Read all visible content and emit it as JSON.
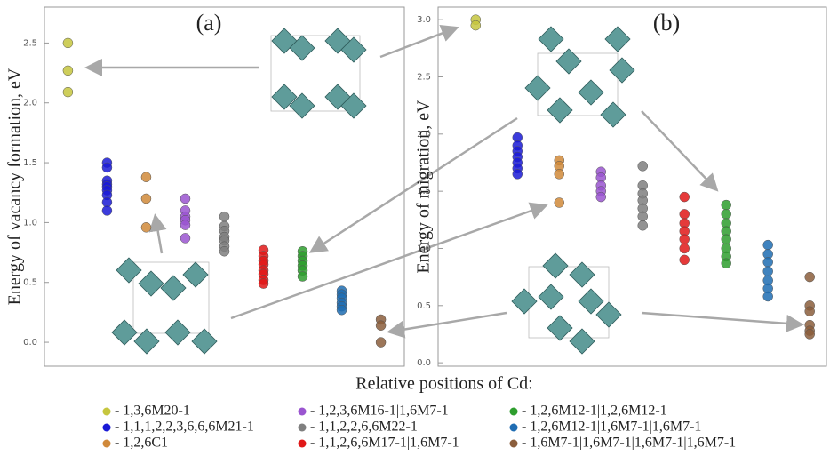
{
  "legend": {
    "title": "Relative positions of Cd:",
    "entries": [
      {
        "name": "- 1,3,6M20-1",
        "color": "#c6c63e"
      },
      {
        "name": "- 1,1,1,2,2,3,6,6,6M21-1",
        "color": "#1a1ad6"
      },
      {
        "name": "- 1,2,6C1",
        "color": "#d0893a"
      },
      {
        "name": "- 1,2,3,6M16-1|1,6M7-1",
        "color": "#9a55d0"
      },
      {
        "name": "- 1,1,2,2,6,6M22-1",
        "color": "#7f7f7f"
      },
      {
        "name": "- 1,1,2,6,6M17-1|1,6M7-1",
        "color": "#e01818"
      },
      {
        "name": "- 1,2,6M12-1|1,2,6M12-1",
        "color": "#2e9e2e"
      },
      {
        "name": "- 1,2,6M12-1|1,6M7-1|1,6M7-1",
        "color": "#1f6db3"
      },
      {
        "name": "- 1,6M7-1|1,6M7-1|1,6M7-1|1,6M7-1",
        "color": "#8b5e3c"
      }
    ]
  },
  "chart_data": [
    {
      "type": "scatter",
      "title": "(a)",
      "y_label": "Energy  of vacancy  formation, eV",
      "xlim": [
        0.4,
        9.6
      ],
      "ylim": [
        -0.2,
        2.8
      ],
      "yticks": [
        {
          "value": 0,
          "label": "0.0"
        },
        0.5,
        {
          "value": 1,
          "label": "1.0"
        },
        1.5,
        {
          "value": 2,
          "label": "2.0"
        },
        2.5
      ],
      "series": [
        {
          "x": [
            1,
            1,
            1
          ],
          "values": [
            2.5,
            2.27,
            2.09
          ]
        },
        {
          "x": [
            2,
            2,
            2,
            2,
            2,
            2,
            2,
            2,
            2
          ],
          "values": [
            1.5,
            1.46,
            1.35,
            1.32,
            1.3,
            1.27,
            1.23,
            1.17,
            1.1
          ]
        },
        {
          "x": [
            3,
            3,
            3
          ],
          "values": [
            1.38,
            1.2,
            0.96
          ]
        },
        {
          "x": [
            4,
            4,
            4,
            4,
            4,
            4
          ],
          "values": [
            1.2,
            1.1,
            1.05,
            1.02,
            0.98,
            0.87
          ]
        },
        {
          "x": [
            5,
            5,
            5,
            5,
            5,
            5,
            5
          ],
          "values": [
            1.05,
            0.97,
            0.93,
            0.88,
            0.85,
            0.8,
            0.76
          ]
        },
        {
          "x": [
            6,
            6,
            6,
            6,
            6,
            6,
            6,
            6
          ],
          "values": [
            0.77,
            0.72,
            0.68,
            0.65,
            0.6,
            0.57,
            0.52,
            0.49
          ]
        },
        {
          "x": [
            7,
            7,
            7,
            7,
            7,
            7
          ],
          "values": [
            0.76,
            0.72,
            0.68,
            0.64,
            0.6,
            0.55
          ]
        },
        {
          "x": [
            8,
            8,
            8,
            8,
            8,
            8
          ],
          "values": [
            0.43,
            0.4,
            0.37,
            0.33,
            0.3,
            0.27
          ]
        },
        {
          "x": [
            9,
            9,
            9
          ],
          "values": [
            0.19,
            0.14,
            0.0
          ]
        }
      ]
    },
    {
      "type": "scatter",
      "title": "(b)",
      "y_label": "Energy  of  migration,  eV",
      "xlim": [
        0.1,
        9.4
      ],
      "ylim": [
        -0.03,
        3.11
      ],
      "yticks": [
        {
          "value": 0,
          "label": "0.0"
        },
        0.5,
        {
          "value": 1,
          "label": "1.0"
        },
        1.5,
        {
          "value": 2,
          "label": "2.0"
        },
        2.5,
        {
          "value": 3,
          "label": "3.0"
        }
      ],
      "series": [
        {
          "x": [
            1,
            1
          ],
          "values": [
            3.0,
            2.95
          ]
        },
        {
          "x": [
            2,
            2,
            2,
            2,
            2,
            2,
            2
          ],
          "values": [
            1.97,
            1.9,
            1.85,
            1.8,
            1.75,
            1.7,
            1.65
          ]
        },
        {
          "x": [
            3,
            3,
            3,
            3
          ],
          "values": [
            1.77,
            1.72,
            1.65,
            1.4
          ]
        },
        {
          "x": [
            4,
            4,
            4,
            4,
            4
          ],
          "values": [
            1.67,
            1.62,
            1.55,
            1.5,
            1.45
          ]
        },
        {
          "x": [
            5,
            5,
            5,
            5,
            5,
            5,
            5
          ],
          "values": [
            1.72,
            1.55,
            1.48,
            1.42,
            1.35,
            1.28,
            1.2
          ]
        },
        {
          "x": [
            6,
            6,
            6,
            6,
            6,
            6,
            6
          ],
          "values": [
            1.45,
            1.3,
            1.22,
            1.15,
            1.08,
            1.0,
            0.9
          ]
        },
        {
          "x": [
            7,
            7,
            7,
            7,
            7,
            7,
            7,
            7
          ],
          "values": [
            1.38,
            1.3,
            1.22,
            1.15,
            1.08,
            1.0,
            0.93,
            0.87
          ]
        },
        {
          "x": [
            8,
            8,
            8,
            8,
            8,
            8,
            8
          ],
          "values": [
            1.03,
            0.95,
            0.88,
            0.8,
            0.72,
            0.65,
            0.58
          ]
        },
        {
          "x": [
            9,
            9,
            9,
            9,
            9,
            9
          ],
          "values": [
            0.75,
            0.5,
            0.45,
            0.33,
            0.28,
            0.25
          ]
        }
      ]
    }
  ]
}
